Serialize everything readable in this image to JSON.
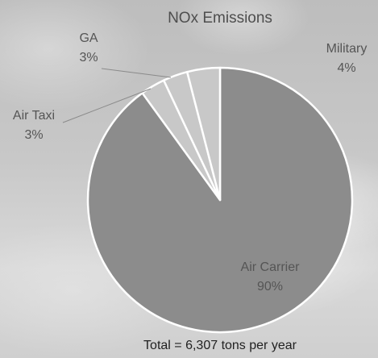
{
  "chart_data": {
    "type": "pie",
    "title": "NOx Emissions",
    "total_label": "Total = 6,307 tons per year",
    "slices": [
      {
        "label": "Air Carrier",
        "value": 90,
        "value_label": "90%",
        "color": "#8c8c8c"
      },
      {
        "label": "Air Taxi",
        "value": 3,
        "value_label": "3%",
        "color": "#c8c8c8"
      },
      {
        "label": "GA",
        "value": 3,
        "value_label": "3%",
        "color": "#c8c8c8"
      },
      {
        "label": "Military",
        "value": 4,
        "value_label": "4%",
        "color": "#c8c8c8"
      }
    ],
    "slice_border_color": "#ffffff",
    "leader_line_color": "#8a8a8a"
  }
}
